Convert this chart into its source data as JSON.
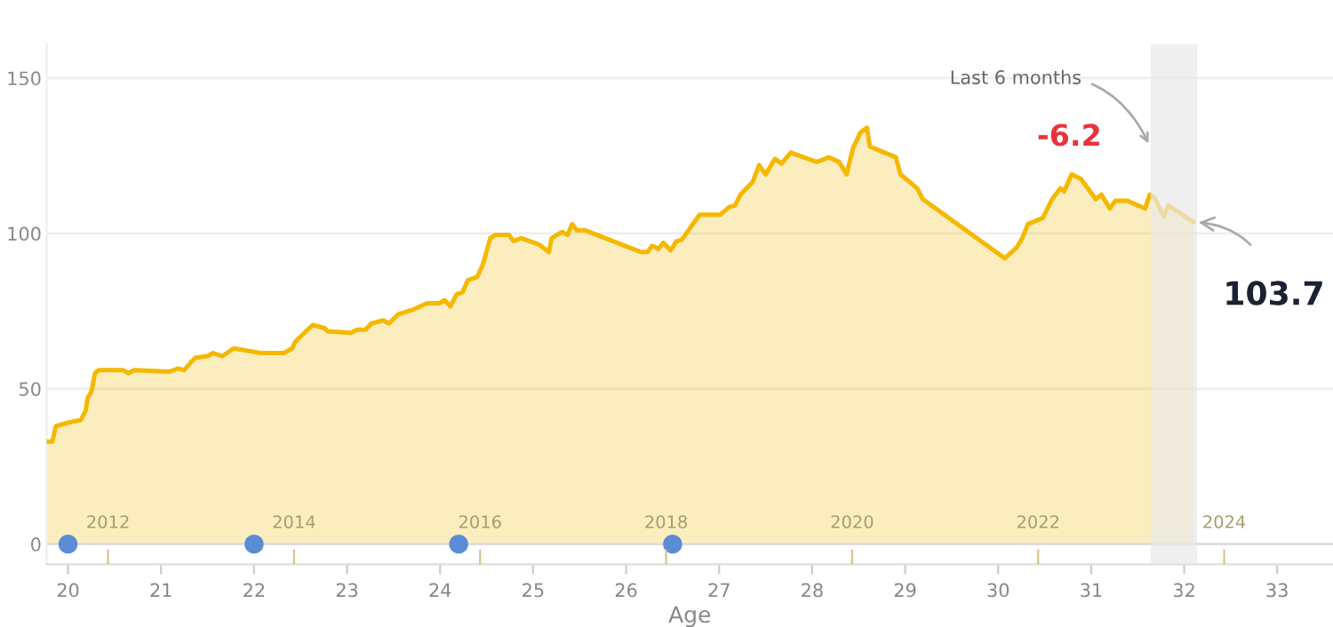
{
  "chart_data": {
    "type": "area",
    "xlabel": "Age",
    "xlim": [
      19.77,
      33.6
    ],
    "xticks": [
      20,
      21,
      22,
      23,
      24,
      25,
      26,
      27,
      28,
      29,
      30,
      31,
      32,
      33
    ],
    "x2lim": [
      2011.34,
      2025.17
    ],
    "x2ticks": [
      2012,
      2014,
      2016,
      2018,
      2020,
      2022,
      2024
    ],
    "ylim": [
      -6.5,
      161
    ],
    "yticks": [
      0,
      50,
      100,
      150
    ],
    "grid": "y",
    "series": [
      {
        "color": "#f5b800",
        "x": [
          19.77,
          19.83,
          19.87,
          19.99,
          20.14,
          20.19,
          20.21,
          20.25,
          20.29,
          20.33,
          20.59,
          20.65,
          20.71,
          21.09,
          21.18,
          21.25,
          21.32,
          21.37,
          21.5,
          21.56,
          21.66,
          21.78,
          22.07,
          22.32,
          22.41,
          22.44,
          22.54,
          22.63,
          22.76,
          22.79,
          23.04,
          23.11,
          23.2,
          23.26,
          23.39,
          23.45,
          23.55,
          23.71,
          23.86,
          23.99,
          24.05,
          24.11,
          24.18,
          24.24,
          24.3,
          24.4,
          24.46,
          24.54,
          24.59,
          24.74,
          24.79,
          24.87,
          25.06,
          25.17,
          25.2,
          25.31,
          25.37,
          25.42,
          25.47,
          25.56,
          26.16,
          26.23,
          26.28,
          26.35,
          26.4,
          26.48,
          26.54,
          26.6,
          26.67,
          26.79,
          27.01,
          27.11,
          27.17,
          27.23,
          27.36,
          27.43,
          27.5,
          27.6,
          27.67,
          27.77,
          28.05,
          28.18,
          28.29,
          28.37,
          28.44,
          28.52,
          28.59,
          28.62,
          28.9,
          28.95,
          29.13,
          29.19,
          30.07,
          30.2,
          30.26,
          30.32,
          30.48,
          30.58,
          30.67,
          30.71,
          30.79,
          30.89,
          31.05,
          31.11,
          31.2,
          31.26,
          31.39,
          31.58,
          31.63,
          31.68,
          31.74,
          31.78,
          31.83,
          32.1
        ],
        "values": [
          33,
          33,
          38,
          39,
          40,
          43,
          47,
          49,
          55,
          56,
          56,
          55,
          56,
          55.5,
          56.5,
          56,
          58.5,
          60,
          60.5,
          61.5,
          60.5,
          63,
          61.5,
          61.5,
          63,
          65,
          68,
          70.5,
          69.5,
          68.5,
          68,
          69,
          69,
          71,
          72,
          71,
          74,
          75.5,
          77.5,
          77.5,
          78.5,
          76.5,
          80.5,
          81,
          85,
          86,
          90,
          98.5,
          99.5,
          99.5,
          97.5,
          98.5,
          96.5,
          94,
          98.5,
          100.5,
          99.5,
          103,
          101,
          101,
          94,
          94,
          96,
          95,
          97,
          94.5,
          97.5,
          98,
          101,
          106,
          106,
          108.5,
          109,
          112.5,
          116.5,
          122,
          119,
          124,
          122.5,
          126,
          123,
          124.5,
          123,
          119,
          127.5,
          132.5,
          134,
          128,
          124.5,
          119,
          114.5,
          111,
          92,
          95.5,
          98.5,
          103,
          105,
          111,
          114.5,
          113.5,
          119,
          117.5,
          111,
          112.5,
          108,
          110.5,
          110.5,
          108,
          112.5,
          111.5,
          108,
          105.5,
          109,
          103.7
        ]
      },
      {
        "type": "scatter",
        "marker": "circle",
        "color": "#5b8dd6",
        "x": [
          20,
          22,
          24.2,
          26.5
        ],
        "values": [
          0,
          0,
          0,
          0
        ]
      }
    ],
    "bands": [
      {
        "axis": "x",
        "from": 31.64,
        "to": 32.14,
        "label": "Last 6 months",
        "color": "#e8e8e8"
      }
    ],
    "annotations": [
      "-6.2",
      {
        "text": "103.7",
        "x": 32.1,
        "y": 103.7
      }
    ]
  }
}
